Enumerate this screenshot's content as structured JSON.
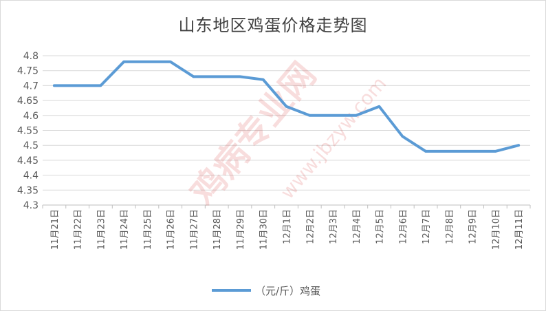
{
  "chart_data": {
    "type": "line",
    "title": "山东地区鸡蛋价格走势图",
    "categories": [
      "11月21日",
      "11月22日",
      "11月23日",
      "11月24日",
      "11月25日",
      "11月26日",
      "11月27日",
      "11月28日",
      "11月29日",
      "11月30日",
      "12月1日",
      "12月2日",
      "12月3日",
      "12月4日",
      "12月5日",
      "12月6日",
      "12月7日",
      "12月8日",
      "12月9日",
      "12月10日",
      "12月11日"
    ],
    "series": [
      {
        "name": "（元/斤）鸡蛋",
        "color": "#5b9bd5",
        "values": [
          4.7,
          4.7,
          4.7,
          4.78,
          4.78,
          4.78,
          4.73,
          4.73,
          4.73,
          4.72,
          4.63,
          4.6,
          4.6,
          4.6,
          4.63,
          4.53,
          4.48,
          4.48,
          4.48,
          4.48,
          4.5
        ]
      }
    ],
    "ylim": [
      4.3,
      4.8
    ],
    "yticks": [
      "4.8",
      "4.75",
      "4.7",
      "4.65",
      "4.6",
      "4.55",
      "4.5",
      "4.45",
      "4.4",
      "4.35",
      "4.3"
    ],
    "grid": true,
    "legend_position": "bottom"
  },
  "watermark": {
    "cn": "鸡病专业网",
    "url": "www.jbzyw.com"
  }
}
